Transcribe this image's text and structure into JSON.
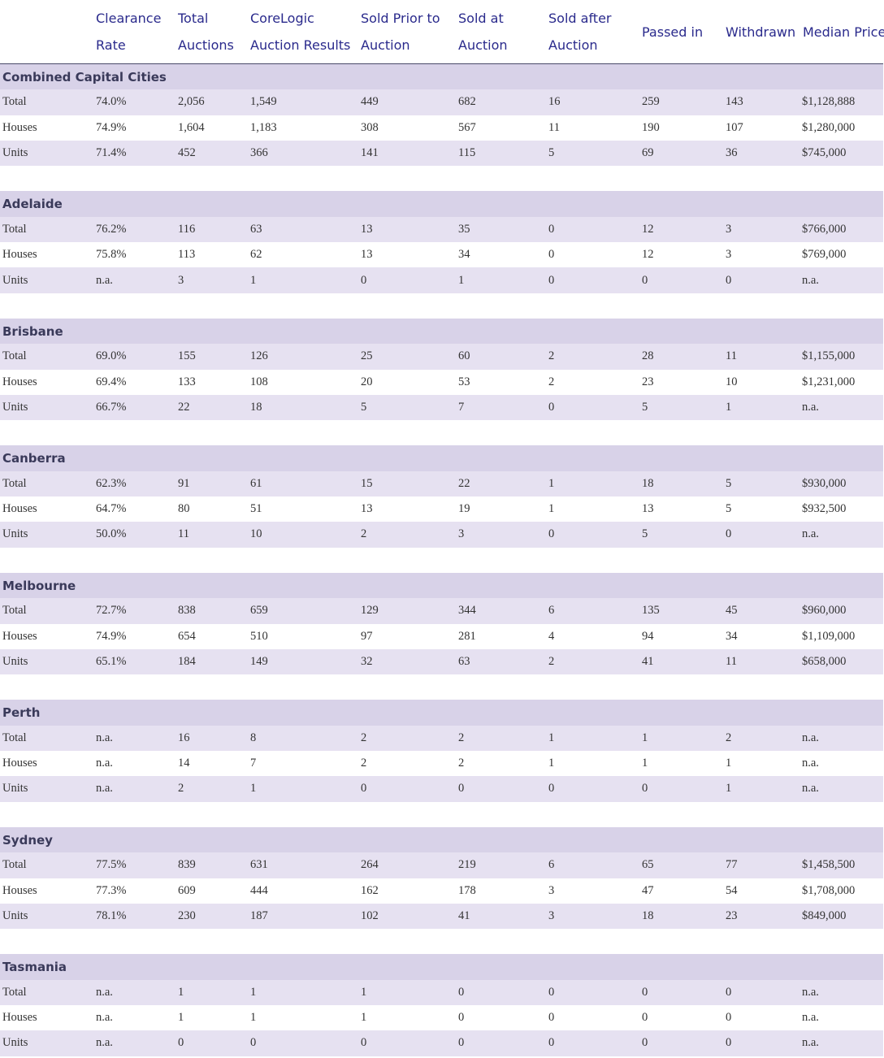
{
  "columns": [
    {
      "line1": "Clearance",
      "line2": "Rate"
    },
    {
      "line1": "Total",
      "line2": "Auctions"
    },
    {
      "line1": "CoreLogic",
      "line2": "Auction Results"
    },
    {
      "line1": "Sold Prior to",
      "line2": "Auction"
    },
    {
      "line1": "Sold at",
      "line2": "Auction"
    },
    {
      "line1": "Sold after",
      "line2": "Auction"
    },
    {
      "line1": "Passed in",
      "line2": ""
    },
    {
      "line1": "Withdrawn",
      "line2": ""
    },
    {
      "line1": "Median Price",
      "line2": ""
    }
  ],
  "sections": [
    {
      "name": "Combined Capital Cities",
      "rows": [
        {
          "label": "Total",
          "values": [
            "74.0%",
            "2,056",
            "1,549",
            "449",
            "682",
            "16",
            "259",
            "143",
            "$1,128,888"
          ]
        },
        {
          "label": "Houses",
          "values": [
            "74.9%",
            "1,604",
            "1,183",
            "308",
            "567",
            "11",
            "190",
            "107",
            "$1,280,000"
          ]
        },
        {
          "label": "Units",
          "values": [
            "71.4%",
            "452",
            "366",
            "141",
            "115",
            "5",
            "69",
            "36",
            "$745,000"
          ]
        }
      ]
    },
    {
      "name": "Adelaide",
      "rows": [
        {
          "label": "Total",
          "values": [
            "76.2%",
            "116",
            "63",
            "13",
            "35",
            "0",
            "12",
            "3",
            "$766,000"
          ]
        },
        {
          "label": "Houses",
          "values": [
            "75.8%",
            "113",
            "62",
            "13",
            "34",
            "0",
            "12",
            "3",
            "$769,000"
          ]
        },
        {
          "label": "Units",
          "values": [
            "n.a.",
            "3",
            "1",
            "0",
            "1",
            "0",
            "0",
            "0",
            "n.a."
          ]
        }
      ]
    },
    {
      "name": "Brisbane",
      "rows": [
        {
          "label": "Total",
          "values": [
            "69.0%",
            "155",
            "126",
            "25",
            "60",
            "2",
            "28",
            "11",
            "$1,155,000"
          ]
        },
        {
          "label": "Houses",
          "values": [
            "69.4%",
            "133",
            "108",
            "20",
            "53",
            "2",
            "23",
            "10",
            "$1,231,000"
          ]
        },
        {
          "label": "Units",
          "values": [
            "66.7%",
            "22",
            "18",
            "5",
            "7",
            "0",
            "5",
            "1",
            "n.a."
          ]
        }
      ]
    },
    {
      "name": "Canberra",
      "rows": [
        {
          "label": "Total",
          "values": [
            "62.3%",
            "91",
            "61",
            "15",
            "22",
            "1",
            "18",
            "5",
            "$930,000"
          ]
        },
        {
          "label": "Houses",
          "values": [
            "64.7%",
            "80",
            "51",
            "13",
            "19",
            "1",
            "13",
            "5",
            "$932,500"
          ]
        },
        {
          "label": "Units",
          "values": [
            "50.0%",
            "11",
            "10",
            "2",
            "3",
            "0",
            "5",
            "0",
            "n.a."
          ]
        }
      ]
    },
    {
      "name": "Melbourne",
      "rows": [
        {
          "label": "Total",
          "values": [
            "72.7%",
            "838",
            "659",
            "129",
            "344",
            "6",
            "135",
            "45",
            "$960,000"
          ]
        },
        {
          "label": "Houses",
          "values": [
            "74.9%",
            "654",
            "510",
            "97",
            "281",
            "4",
            "94",
            "34",
            "$1,109,000"
          ]
        },
        {
          "label": "Units",
          "values": [
            "65.1%",
            "184",
            "149",
            "32",
            "63",
            "2",
            "41",
            "11",
            "$658,000"
          ]
        }
      ]
    },
    {
      "name": "Perth",
      "rows": [
        {
          "label": "Total",
          "values": [
            "n.a.",
            "16",
            "8",
            "2",
            "2",
            "1",
            "1",
            "2",
            "n.a."
          ]
        },
        {
          "label": "Houses",
          "values": [
            "n.a.",
            "14",
            "7",
            "2",
            "2",
            "1",
            "1",
            "1",
            "n.a."
          ]
        },
        {
          "label": "Units",
          "values": [
            "n.a.",
            "2",
            "1",
            "0",
            "0",
            "0",
            "0",
            "1",
            "n.a."
          ]
        }
      ]
    },
    {
      "name": "Sydney",
      "rows": [
        {
          "label": "Total",
          "values": [
            "77.5%",
            "839",
            "631",
            "264",
            "219",
            "6",
            "65",
            "77",
            "$1,458,500"
          ]
        },
        {
          "label": "Houses",
          "values": [
            "77.3%",
            "609",
            "444",
            "162",
            "178",
            "3",
            "47",
            "54",
            "$1,708,000"
          ]
        },
        {
          "label": "Units",
          "values": [
            "78.1%",
            "230",
            "187",
            "102",
            "41",
            "3",
            "18",
            "23",
            "$849,000"
          ]
        }
      ]
    },
    {
      "name": "Tasmania",
      "rows": [
        {
          "label": "Total",
          "values": [
            "n.a.",
            "1",
            "1",
            "1",
            "0",
            "0",
            "0",
            "0",
            "n.a."
          ]
        },
        {
          "label": "Houses",
          "values": [
            "n.a.",
            "1",
            "1",
            "1",
            "0",
            "0",
            "0",
            "0",
            "n.a."
          ]
        },
        {
          "label": "Units",
          "values": [
            "n.a.",
            "0",
            "0",
            "0",
            "0",
            "0",
            "0",
            "0",
            "n.a."
          ]
        }
      ]
    }
  ]
}
